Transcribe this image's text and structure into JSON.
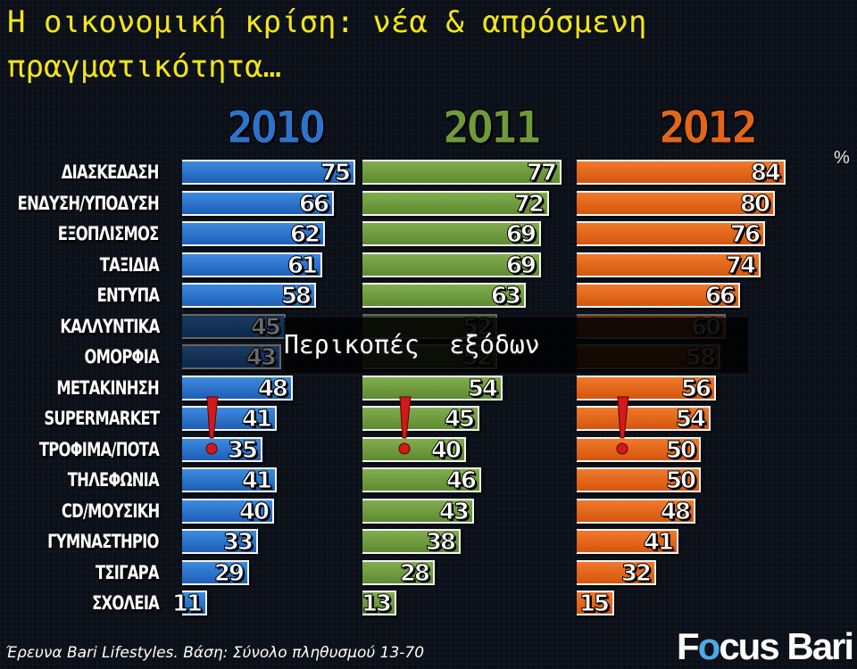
{
  "title": "Η οικονομική κρίση: νέα & απρόσμενη πραγματικότητα…",
  "unit": "%",
  "overlay_label": "Περικοπές  εξόδων",
  "footer": "Έρευνα Bari Lifestyles. Βάση: Σύνολο πληθυσμού 13-70",
  "logo": {
    "prefix": "F",
    "o": "o",
    "rest1": "cus ",
    "rest2": "Bari"
  },
  "colors": {
    "2010": "#2d73c9",
    "2011": "#6e9a3a",
    "2012": "#e2661a",
    "title": "#f2e51a"
  },
  "chart_data": {
    "type": "bar",
    "orientation": "horizontal",
    "categories": [
      "ΔΙΑΣΚΕΔΑΣΗ",
      "ΕΝΔΥΣΗ/ΥΠΟΔΥΣΗ",
      "ΕΞΟΠΛΙΣΜΟΣ",
      "ΤΑΞΙΔΙΑ",
      "ΕΝΤΥΠΑ",
      "ΚΑΛΛΥΝΤΙΚΑ",
      "ΟΜΟΡΦΙΑ",
      "ΜΕΤΑΚΙΝΗΣΗ",
      "SUPERMARKET",
      "ΤΡΟΦΙΜΑ/ΠΟΤΑ",
      "ΤΗΛΕΦΩΝΙΑ",
      "CD/ΜΟΥΣΙΚΗ",
      "ΓΥΜΝΑΣΤΗΡΙΟ",
      "ΤΣΙΓΑΡΑ",
      "ΣΧΟΛΕΙΑ"
    ],
    "series": [
      {
        "name": "2010",
        "values": [
          75,
          66,
          62,
          61,
          58,
          45,
          43,
          48,
          41,
          35,
          41,
          40,
          33,
          29,
          11
        ]
      },
      {
        "name": "2011",
        "values": [
          77,
          72,
          69,
          69,
          63,
          52,
          52,
          54,
          45,
          40,
          46,
          43,
          38,
          28,
          13
        ]
      },
      {
        "name": "2012",
        "values": [
          84,
          80,
          76,
          74,
          66,
          60,
          58,
          56,
          54,
          50,
          50,
          48,
          41,
          32,
          15
        ]
      }
    ],
    "dimmed_categories": [
      "ΚΑΛΛΥΝΤΙΚΑ",
      "ΟΜΟΡΦΙΑ"
    ],
    "highlighted_category": "ΤΡΟΦΙΜΑ/ΠΟΤΑ",
    "legend": "years above each column group",
    "grid": false
  }
}
